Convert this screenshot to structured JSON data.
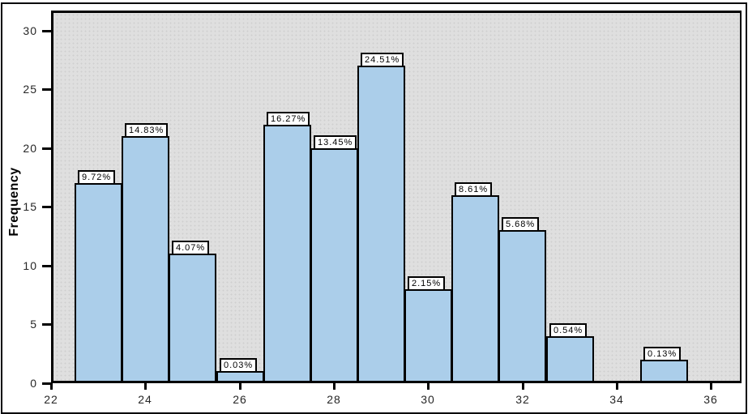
{
  "window": {
    "background_color": "#FFFFFF",
    "border_color": "#05050A"
  },
  "chart_data": {
    "type": "bar",
    "subtype": "histogram",
    "title": "",
    "xlabel": "",
    "ylabel": "Frequency",
    "grid": false,
    "legend": false,
    "xlim": [
      22,
      36.65
    ],
    "ylim": [
      0,
      31.7
    ],
    "bar_width": 1,
    "x_tick_values": [
      22,
      24,
      26,
      28,
      30,
      32,
      34,
      36
    ],
    "x_tick_labels": [
      "22",
      "24",
      "26",
      "28",
      "30",
      "32",
      "34",
      "36"
    ],
    "y_tick_values": [
      0,
      5,
      10,
      15,
      20,
      25,
      30
    ],
    "y_tick_labels": [
      "0",
      "5",
      "10",
      "15",
      "20",
      "25",
      "30"
    ],
    "bars": [
      {
        "center": 23,
        "frequency": 17,
        "percent_label": "9.72%"
      },
      {
        "center": 24,
        "frequency": 21,
        "percent_label": "14.83%"
      },
      {
        "center": 25,
        "frequency": 11,
        "percent_label": "4.07%"
      },
      {
        "center": 26,
        "frequency": 1,
        "percent_label": "0.03%"
      },
      {
        "center": 27,
        "frequency": 22,
        "percent_label": "16.27%"
      },
      {
        "center": 28,
        "frequency": 20,
        "percent_label": "13.45%"
      },
      {
        "center": 29,
        "frequency": 27,
        "percent_label": "24.51%"
      },
      {
        "center": 30,
        "frequency": 8,
        "percent_label": "2.15%"
      },
      {
        "center": 31,
        "frequency": 16,
        "percent_label": "8.61%"
      },
      {
        "center": 32,
        "frequency": 13,
        "percent_label": "5.68%"
      },
      {
        "center": 33,
        "frequency": 4,
        "percent_label": "0.54%"
      },
      {
        "center": 35,
        "frequency": 2,
        "percent_label": "0.13%"
      }
    ],
    "colors": {
      "bar_fill": "#ABCEEA",
      "bar_border": "#000000",
      "plot_background": "#DFDFDF",
      "axis_color": "#000000",
      "tick_label_color": "#262626",
      "percent_label_background": "#FFFFFF",
      "percent_label_border": "#000000"
    }
  }
}
